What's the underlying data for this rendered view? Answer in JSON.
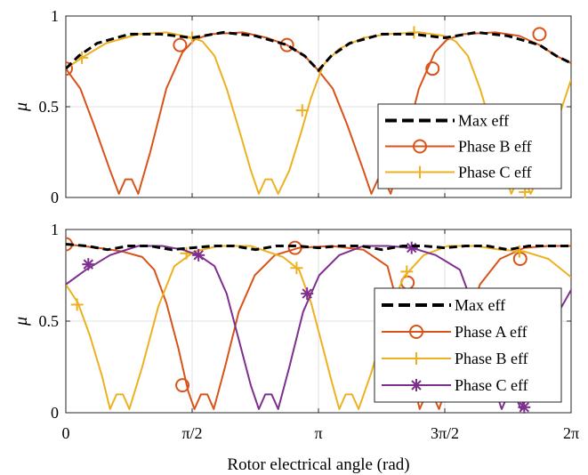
{
  "chart_data": [
    {
      "type": "line",
      "title": "",
      "xlabel": "",
      "ylabel": "μ",
      "xlim": [
        0,
        6.2832
      ],
      "ylim": [
        0,
        1
      ],
      "x_ticks": [],
      "y_ticks": [
        {
          "value": 0,
          "label": "0"
        },
        {
          "value": 0.5,
          "label": "0.5"
        },
        {
          "value": 1,
          "label": "1"
        }
      ],
      "grid": true,
      "legend": "bottom-right",
      "series": [
        {
          "name": "Max eff",
          "color": "#000000",
          "dash": "dashed",
          "marker": "none",
          "values": [
            [
              0,
              0.71
            ],
            [
              0.16,
              0.78
            ],
            [
              0.39,
              0.85
            ],
            [
              0.79,
              0.9
            ],
            [
              1.18,
              0.9
            ],
            [
              1.57,
              0.88
            ],
            [
              1.96,
              0.91
            ],
            [
              2.36,
              0.89
            ],
            [
              2.75,
              0.84
            ],
            [
              2.97,
              0.78
            ],
            [
              3.14,
              0.7
            ],
            [
              3.3,
              0.78
            ],
            [
              3.53,
              0.85
            ],
            [
              3.93,
              0.9
            ],
            [
              4.32,
              0.9
            ],
            [
              4.71,
              0.88
            ],
            [
              5.11,
              0.91
            ],
            [
              5.5,
              0.89
            ],
            [
              5.89,
              0.84
            ],
            [
              6.1,
              0.78
            ],
            [
              6.2832,
              0.74
            ]
          ]
        },
        {
          "name": "Phase B eff",
          "color": "#D95319",
          "dash": "solid",
          "marker": "circle",
          "values": [
            [
              0,
              0.71
            ],
            [
              0.18,
              0.6
            ],
            [
              0.35,
              0.4
            ],
            [
              0.55,
              0.15
            ],
            [
              0.66,
              0.02
            ],
            [
              0.74,
              0.1
            ],
            [
              0.82,
              0.1
            ],
            [
              0.9,
              0.02
            ],
            [
              1.05,
              0.25
            ],
            [
              1.25,
              0.6
            ],
            [
              1.45,
              0.8
            ],
            [
              1.6,
              0.87
            ],
            [
              1.8,
              0.9
            ],
            [
              2.2,
              0.91
            ],
            [
              2.5,
              0.88
            ],
            [
              2.75,
              0.84
            ],
            [
              2.97,
              0.78
            ],
            [
              3.14,
              0.7
            ],
            [
              3.32,
              0.6
            ],
            [
              3.5,
              0.4
            ],
            [
              3.7,
              0.15
            ],
            [
              3.8,
              0.02
            ],
            [
              3.88,
              0.1
            ],
            [
              3.96,
              0.1
            ],
            [
              4.04,
              0.02
            ],
            [
              4.19,
              0.25
            ],
            [
              4.39,
              0.6
            ],
            [
              4.59,
              0.8
            ],
            [
              4.74,
              0.87
            ],
            [
              4.94,
              0.9
            ],
            [
              5.34,
              0.91
            ],
            [
              5.64,
              0.89
            ],
            [
              5.89,
              0.84
            ],
            [
              6.1,
              0.78
            ],
            [
              6.2832,
              0.74
            ]
          ],
          "marker_points": [
            [
              0,
              0.71
            ],
            [
              1.42,
              0.84
            ],
            [
              2.75,
              0.84
            ],
            [
              4.56,
              0.71
            ],
            [
              5.89,
              0.9
            ]
          ]
        },
        {
          "name": "Phase C eff",
          "color": "#EDB120",
          "dash": "solid",
          "marker": "plus",
          "values": [
            [
              0,
              0.71
            ],
            [
              0.2,
              0.77
            ],
            [
              0.5,
              0.85
            ],
            [
              0.9,
              0.9
            ],
            [
              1.25,
              0.91
            ],
            [
              1.57,
              0.88
            ],
            [
              1.7,
              0.86
            ],
            [
              1.85,
              0.78
            ],
            [
              2.0,
              0.6
            ],
            [
              2.15,
              0.38
            ],
            [
              2.3,
              0.15
            ],
            [
              2.4,
              0.02
            ],
            [
              2.48,
              0.1
            ],
            [
              2.56,
              0.1
            ],
            [
              2.64,
              0.02
            ],
            [
              2.78,
              0.15
            ],
            [
              2.92,
              0.35
            ],
            [
              3.05,
              0.55
            ],
            [
              3.2,
              0.73
            ],
            [
              3.4,
              0.82
            ],
            [
              3.7,
              0.88
            ],
            [
              4.0,
              0.9
            ],
            [
              4.4,
              0.91
            ],
            [
              4.71,
              0.89
            ],
            [
              4.85,
              0.86
            ],
            [
              5.0,
              0.78
            ],
            [
              5.15,
              0.6
            ],
            [
              5.3,
              0.38
            ],
            [
              5.44,
              0.15
            ],
            [
              5.54,
              0.02
            ],
            [
              5.62,
              0.1
            ],
            [
              5.7,
              0.1
            ],
            [
              5.78,
              0.02
            ],
            [
              5.92,
              0.15
            ],
            [
              6.06,
              0.35
            ],
            [
              6.2832,
              0.65
            ]
          ],
          "marker_points": [
            [
              0.2,
              0.77
            ],
            [
              1.57,
              0.88
            ],
            [
              2.94,
              0.48
            ],
            [
              4.33,
              0.91
            ],
            [
              5.71,
              0.03
            ]
          ]
        }
      ]
    },
    {
      "type": "line",
      "title": "",
      "xlabel": "Rotor electrical angle (rad)",
      "ylabel": "μ",
      "xlim": [
        0,
        6.2832
      ],
      "ylim": [
        0,
        1
      ],
      "x_ticks": [
        {
          "value": 0,
          "label": "0"
        },
        {
          "value": 1.5708,
          "label": "π/2"
        },
        {
          "value": 3.1416,
          "label": "π"
        },
        {
          "value": 4.7124,
          "label": "3π/2"
        },
        {
          "value": 6.2832,
          "label": "2π"
        }
      ],
      "y_ticks": [
        {
          "value": 0,
          "label": "0"
        },
        {
          "value": 0.5,
          "label": "0.5"
        },
        {
          "value": 1,
          "label": "1"
        }
      ],
      "grid": true,
      "legend": "bottom-right",
      "series": [
        {
          "name": "Max eff",
          "color": "#000000",
          "dash": "dashed",
          "marker": "none",
          "values": [
            [
              0,
              0.92
            ],
            [
              0.26,
              0.91
            ],
            [
              0.52,
              0.89
            ],
            [
              0.78,
              0.91
            ],
            [
              1.05,
              0.91
            ],
            [
              1.31,
              0.89
            ],
            [
              1.57,
              0.9
            ],
            [
              1.83,
              0.91
            ],
            [
              2.09,
              0.91
            ],
            [
              2.36,
              0.89
            ],
            [
              2.62,
              0.91
            ],
            [
              2.88,
              0.91
            ],
            [
              3.14,
              0.9
            ],
            [
              3.4,
              0.91
            ],
            [
              3.67,
              0.91
            ],
            [
              3.93,
              0.89
            ],
            [
              4.19,
              0.91
            ],
            [
              4.45,
              0.91
            ],
            [
              4.71,
              0.9
            ],
            [
              4.97,
              0.91
            ],
            [
              5.24,
              0.91
            ],
            [
              5.5,
              0.89
            ],
            [
              5.76,
              0.91
            ],
            [
              6.02,
              0.91
            ],
            [
              6.2832,
              0.91
            ]
          ]
        },
        {
          "name": "Phase A eff",
          "color": "#D95319",
          "dash": "solid",
          "marker": "circle",
          "values": [
            [
              0,
              0.92
            ],
            [
              0.4,
              0.9
            ],
            [
              0.7,
              0.88
            ],
            [
              0.95,
              0.85
            ],
            [
              1.1,
              0.78
            ],
            [
              1.25,
              0.6
            ],
            [
              1.4,
              0.35
            ],
            [
              1.52,
              0.12
            ],
            [
              1.6,
              0.02
            ],
            [
              1.68,
              0.1
            ],
            [
              1.76,
              0.1
            ],
            [
              1.84,
              0.02
            ],
            [
              1.98,
              0.25
            ],
            [
              2.15,
              0.55
            ],
            [
              2.35,
              0.75
            ],
            [
              2.6,
              0.86
            ],
            [
              2.9,
              0.9
            ],
            [
              3.3,
              0.91
            ],
            [
              3.7,
              0.89
            ],
            [
              4.0,
              0.8
            ],
            [
              4.15,
              0.55
            ],
            [
              4.3,
              0.2
            ],
            [
              4.4,
              0.02
            ],
            [
              4.48,
              0.1
            ],
            [
              4.56,
              0.1
            ],
            [
              4.64,
              0.02
            ],
            [
              4.78,
              0.2
            ],
            [
              4.95,
              0.45
            ],
            [
              5.15,
              0.7
            ],
            [
              5.4,
              0.84
            ],
            [
              5.7,
              0.9
            ],
            [
              6.0,
              0.91
            ],
            [
              6.2832,
              0.91
            ]
          ],
          "marker_points": [
            [
              0,
              0.92
            ],
            [
              1.45,
              0.15
            ],
            [
              2.85,
              0.9
            ],
            [
              4.25,
              0.71
            ],
            [
              5.65,
              0.84
            ]
          ]
        },
        {
          "name": "Phase B eff",
          "color": "#EDB120",
          "dash": "solid",
          "marker": "plus",
          "values": [
            [
              0,
              0.7
            ],
            [
              0.15,
              0.6
            ],
            [
              0.3,
              0.42
            ],
            [
              0.45,
              0.2
            ],
            [
              0.55,
              0.02
            ],
            [
              0.63,
              0.1
            ],
            [
              0.71,
              0.1
            ],
            [
              0.79,
              0.02
            ],
            [
              0.95,
              0.25
            ],
            [
              1.15,
              0.58
            ],
            [
              1.35,
              0.8
            ],
            [
              1.6,
              0.88
            ],
            [
              1.9,
              0.91
            ],
            [
              2.3,
              0.91
            ],
            [
              2.7,
              0.85
            ],
            [
              2.9,
              0.78
            ],
            [
              3.05,
              0.6
            ],
            [
              3.2,
              0.35
            ],
            [
              3.3,
              0.18
            ],
            [
              3.4,
              0.02
            ],
            [
              3.48,
              0.1
            ],
            [
              3.56,
              0.1
            ],
            [
              3.64,
              0.02
            ],
            [
              3.8,
              0.22
            ],
            [
              4.0,
              0.52
            ],
            [
              4.2,
              0.74
            ],
            [
              4.45,
              0.86
            ],
            [
              4.75,
              0.91
            ],
            [
              5.1,
              0.91
            ],
            [
              5.4,
              0.89
            ],
            [
              5.7,
              0.88
            ],
            [
              6.0,
              0.84
            ],
            [
              6.2832,
              0.74
            ]
          ],
          "marker_points": [
            [
              0.14,
              0.59
            ],
            [
              1.5,
              0.87
            ],
            [
              2.87,
              0.79
            ],
            [
              4.24,
              0.77
            ],
            [
              5.64,
              0.88
            ]
          ]
        },
        {
          "name": "Phase C eff",
          "color": "#7E2F8E",
          "dash": "solid",
          "marker": "asterisk",
          "values": [
            [
              0,
              0.7
            ],
            [
              0.25,
              0.78
            ],
            [
              0.55,
              0.86
            ],
            [
              0.9,
              0.91
            ],
            [
              1.2,
              0.91
            ],
            [
              1.45,
              0.89
            ],
            [
              1.65,
              0.86
            ],
            [
              1.85,
              0.8
            ],
            [
              2.0,
              0.65
            ],
            [
              2.15,
              0.4
            ],
            [
              2.3,
              0.15
            ],
            [
              2.4,
              0.02
            ],
            [
              2.48,
              0.1
            ],
            [
              2.56,
              0.1
            ],
            [
              2.64,
              0.02
            ],
            [
              2.78,
              0.25
            ],
            [
              2.95,
              0.55
            ],
            [
              3.15,
              0.75
            ],
            [
              3.4,
              0.86
            ],
            [
              3.7,
              0.91
            ],
            [
              4.0,
              0.91
            ],
            [
              4.3,
              0.9
            ],
            [
              4.6,
              0.86
            ],
            [
              4.9,
              0.78
            ],
            [
              5.05,
              0.6
            ],
            [
              5.2,
              0.35
            ],
            [
              5.32,
              0.15
            ],
            [
              5.42,
              0.02
            ],
            [
              5.5,
              0.1
            ],
            [
              5.58,
              0.1
            ],
            [
              5.66,
              0.02
            ],
            [
              5.82,
              0.25
            ],
            [
              6.0,
              0.45
            ],
            [
              6.2832,
              0.67
            ]
          ],
          "marker_points": [
            [
              0.28,
              0.81
            ],
            [
              1.65,
              0.86
            ],
            [
              3.0,
              0.65
            ],
            [
              4.3,
              0.9
            ],
            [
              5.7,
              0.03
            ]
          ]
        }
      ]
    }
  ]
}
